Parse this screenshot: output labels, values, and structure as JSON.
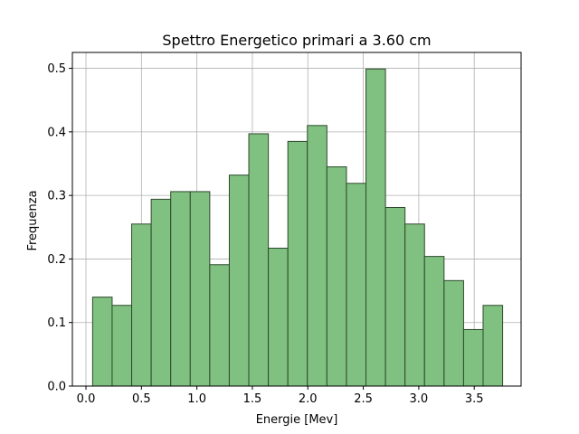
{
  "chart_data": {
    "type": "bar",
    "title": "Spettro Energetico primari a 3.60 cm",
    "xlabel": "Energie [Mev]",
    "ylabel": "Frequenza",
    "xlim": [
      -0.1225,
      3.9225
    ],
    "ylim": [
      0,
      0.525
    ],
    "xticks": [
      0.0,
      0.5,
      1.0,
      1.5,
      2.0,
      2.5,
      3.0,
      3.5
    ],
    "xtick_labels": [
      "0.0",
      "0.5",
      "1.0",
      "1.5",
      "2.0",
      "2.5",
      "3.0",
      "3.5"
    ],
    "yticks": [
      0.0,
      0.1,
      0.2,
      0.3,
      0.4,
      0.5
    ],
    "ytick_labels": [
      "0.0",
      "0.1",
      "0.2",
      "0.3",
      "0.4",
      "0.5"
    ],
    "grid": true,
    "bar_color": "#80c080",
    "bar_edge_color": "#2e4a2e",
    "bin_edges": [
      0.06,
      0.236,
      0.412,
      0.588,
      0.764,
      0.94,
      1.116,
      1.292,
      1.468,
      1.644,
      1.82,
      1.996,
      2.172,
      2.348,
      2.524,
      2.7,
      2.876,
      3.052,
      3.228,
      3.404,
      3.58,
      3.756
    ],
    "values": [
      0.14,
      0.127,
      0.255,
      0.294,
      0.306,
      0.306,
      0.191,
      0.332,
      0.397,
      0.217,
      0.385,
      0.41,
      0.345,
      0.319,
      0.499,
      0.281,
      0.255,
      0.204,
      0.166,
      0.089,
      0.127
    ]
  }
}
